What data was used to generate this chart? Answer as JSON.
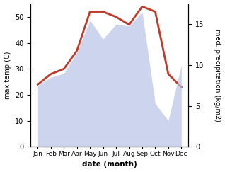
{
  "months": [
    "Jan",
    "Feb",
    "Mar",
    "Apr",
    "May",
    "Jun",
    "Jul",
    "Aug",
    "Sep",
    "Oct",
    "Nov",
    "Dec"
  ],
  "temp": [
    24,
    28,
    30,
    37,
    52,
    52,
    50,
    47,
    54,
    52,
    28,
    23
  ],
  "precip": [
    7.5,
    8.5,
    9.0,
    11.5,
    15.5,
    13.2,
    15.0,
    14.8,
    16.5,
    5.3,
    3.2,
    10.0
  ],
  "temp_color": "#c0392b",
  "precip_color": "#b8c4e8",
  "precip_alpha": 0.7,
  "temp_ylim": [
    0,
    55
  ],
  "precip_ylim": [
    0,
    17.5
  ],
  "temp_yticks": [
    0,
    10,
    20,
    30,
    40,
    50
  ],
  "precip_yticks": [
    0,
    5,
    10,
    15
  ],
  "xlabel": "date (month)",
  "ylabel_left": "max temp (C)",
  "ylabel_right": "med. precipitation (kg/m2)",
  "bg_color": "#ffffff",
  "temp_linewidth": 2.0,
  "label_fontsize": 7,
  "tick_fontsize": 7,
  "xlabel_fontsize": 7.5
}
